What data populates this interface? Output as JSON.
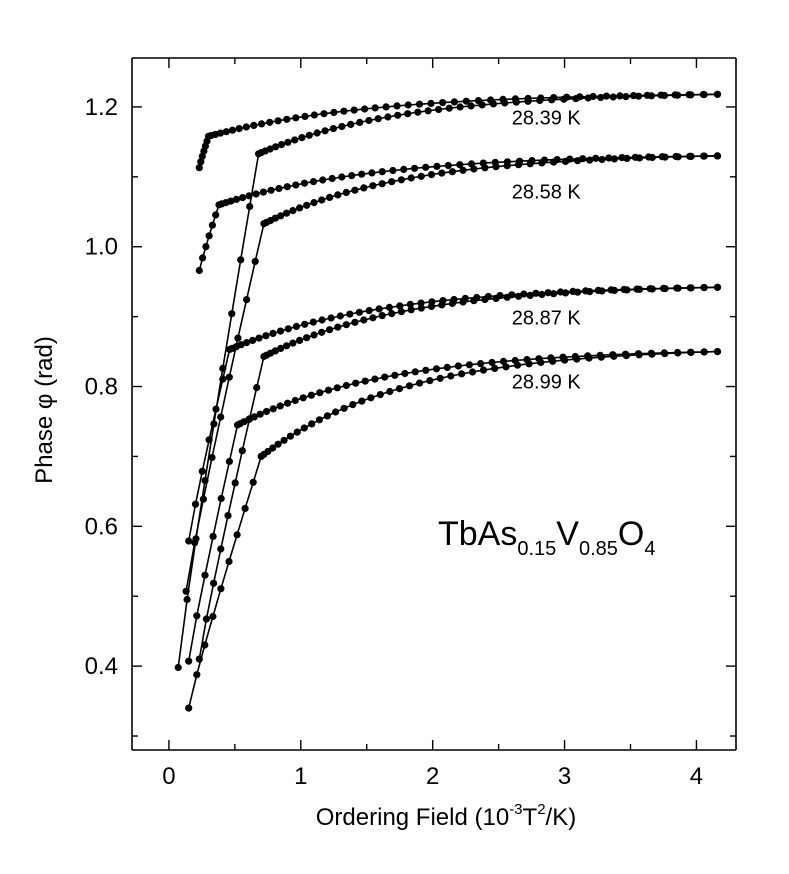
{
  "chart_data": {
    "type": "scatter",
    "title": "",
    "xlabel_main": "Ordering Field (10",
    "xlabel_sup1": "-3",
    "xlabel_mid": "T",
    "xlabel_sup2": "2",
    "xlabel_end": "/K)",
    "ylabel": "Phase φ (rad)",
    "xlim": [
      -0.28,
      4.3
    ],
    "ylim": [
      0.28,
      1.27
    ],
    "x_ticks": [
      0,
      1,
      2,
      3,
      4
    ],
    "x_tick_labels": [
      "0",
      "1",
      "2",
      "3",
      "4"
    ],
    "x_minor_ticks": [
      0.5,
      1.5,
      2.5,
      3.5
    ],
    "y_ticks": [
      0.4,
      0.6,
      0.8,
      1.0,
      1.2
    ],
    "y_tick_labels": [
      "0.4",
      "0.6",
      "0.8",
      "1.0",
      "1.2"
    ],
    "y_minor_ticks": [
      0.3,
      0.5,
      0.7,
      0.9,
      1.1
    ],
    "annotation": {
      "main": "TbAs",
      "sub1": "0.15",
      "mid": "V",
      "sub2": "0.85",
      "end": "O",
      "sub3": "4"
    },
    "series": [
      {
        "name": "28.39 K",
        "label": "28.39 K",
        "label_x": 2.6,
        "label_y": 1.175,
        "upper": {
          "x_start": 0.23,
          "y_start": 1.113,
          "knee_x": 0.3,
          "y_knee": 1.158,
          "y_end": 1.218,
          "x_end": 4.16
        },
        "lower": {
          "x_start": 0.07,
          "y_start": 0.398,
          "knee_x": 0.68,
          "y_knee": 1.133,
          "y_end": 1.218,
          "x_end": 4.16
        }
      },
      {
        "name": "28.58 K",
        "label": "28.58 K",
        "label_x": 2.6,
        "label_y": 1.069,
        "upper": {
          "x_start": 0.23,
          "y_start": 0.966,
          "knee_x": 0.38,
          "y_knee": 1.06,
          "y_end": 1.13,
          "x_end": 4.16
        },
        "lower": {
          "x_start": 0.13,
          "y_start": 0.507,
          "knee_x": 0.72,
          "y_knee": 1.033,
          "y_end": 1.13,
          "x_end": 4.16
        }
      },
      {
        "name": "28.87 K",
        "label": "28.87 K",
        "label_x": 2.6,
        "label_y": 0.889,
        "upper": {
          "x_start": 0.15,
          "y_start": 0.579,
          "knee_x": 0.46,
          "y_knee": 0.853,
          "y_end": 0.942,
          "x_end": 4.16
        },
        "lower": {
          "x_start": 0.23,
          "y_start": 0.41,
          "knee_x": 0.72,
          "y_knee": 0.843,
          "y_end": 0.942,
          "x_end": 4.16
        }
      },
      {
        "name": "28.99 K",
        "label": "28.99 K",
        "label_x": 2.6,
        "label_y": 0.797,
        "upper": {
          "x_start": 0.15,
          "y_start": 0.407,
          "knee_x": 0.52,
          "y_knee": 0.745,
          "y_end": 0.85,
          "x_end": 4.16
        },
        "lower": {
          "x_start": 0.15,
          "y_start": 0.34,
          "knee_x": 0.7,
          "y_knee": 0.7,
          "y_end": 0.85,
          "x_end": 4.16
        }
      }
    ]
  }
}
